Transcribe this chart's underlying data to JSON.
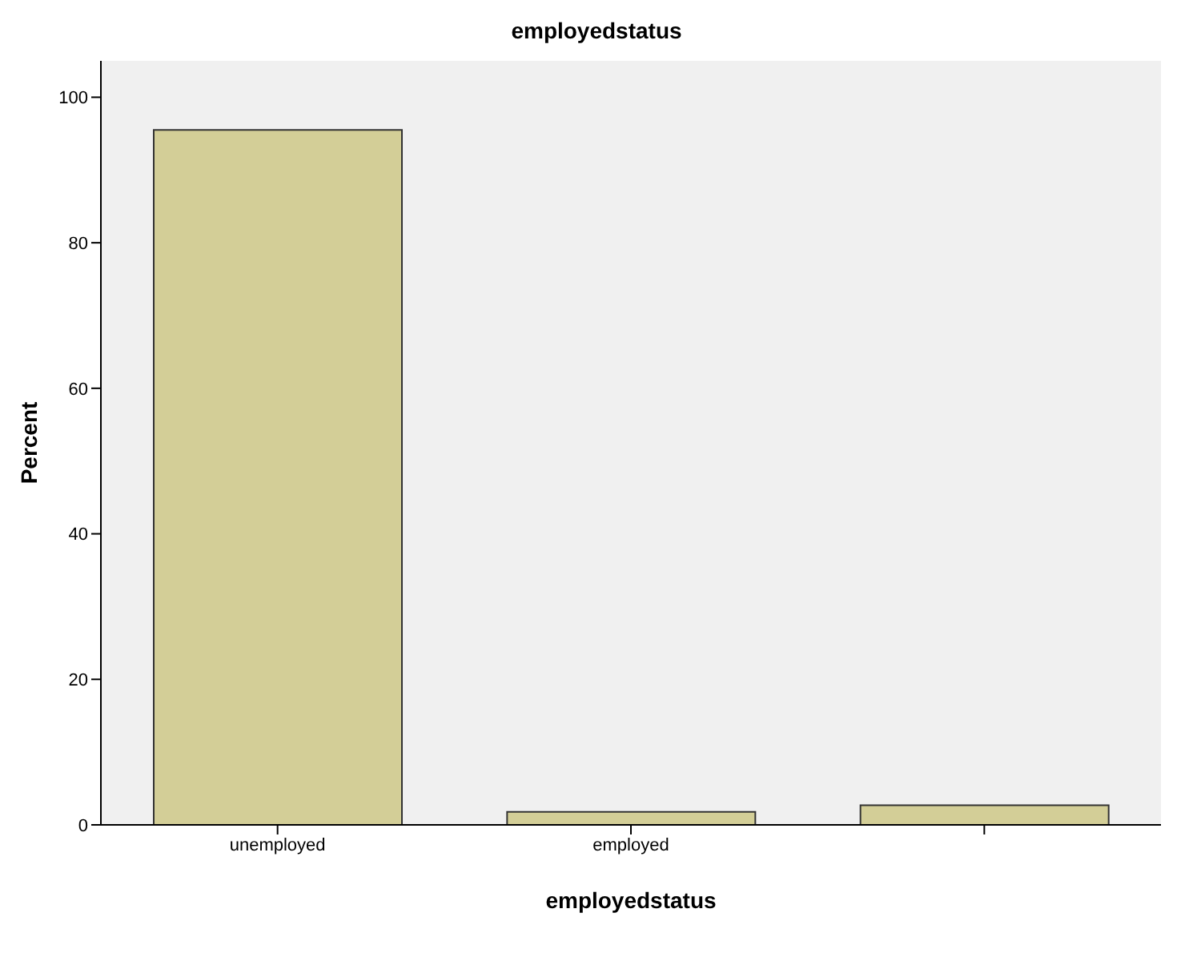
{
  "chart_data": {
    "type": "bar",
    "title": "employedstatus",
    "xlabel": "employedstatus",
    "ylabel": "Percent",
    "categories": [
      "unemployed",
      "employed",
      null
    ],
    "values": [
      95.5,
      1.8,
      2.7
    ],
    "color": "#d3ce97",
    "ylim": [
      0,
      105
    ],
    "yticks": [
      0,
      20,
      40,
      60,
      80,
      100
    ],
    "grid": false
  }
}
